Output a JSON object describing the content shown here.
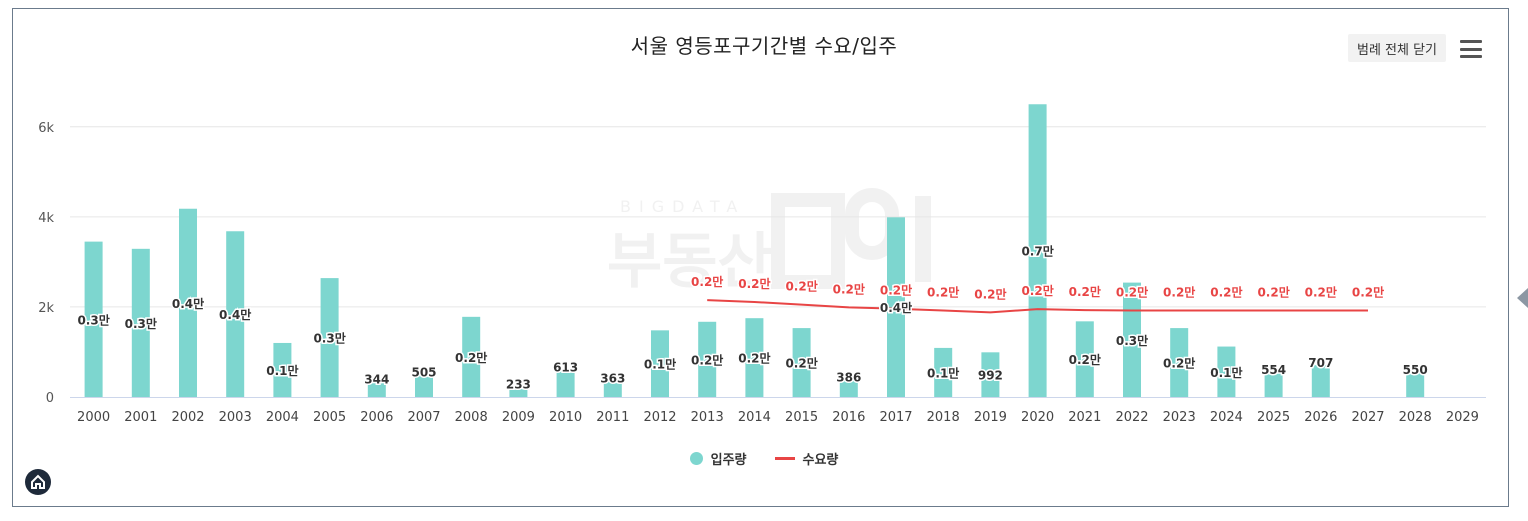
{
  "title": "서울 영등포구기간별 수요/입주",
  "legend_toggle_label": "범례 전체 닫기",
  "watermark": {
    "small": "BIGDATA",
    "big": "부동산"
  },
  "colors": {
    "bar": "#7dd6cf",
    "line": "#e84545",
    "grid": "#e6e6e6",
    "axis": "#ccd6eb",
    "bar_label": "#333333",
    "line_label": "#e84545"
  },
  "chart_data": {
    "type": "bar+line",
    "title": "서울 영등포구기간별 수요/입주",
    "categories": [
      "2000",
      "2001",
      "2002",
      "2003",
      "2004",
      "2005",
      "2006",
      "2007",
      "2008",
      "2009",
      "2010",
      "2011",
      "2012",
      "2013",
      "2014",
      "2015",
      "2016",
      "2017",
      "2018",
      "2019",
      "2020",
      "2021",
      "2022",
      "2023",
      "2024",
      "2025",
      "2026",
      "2027",
      "2028",
      "2029"
    ],
    "ylim": [
      0,
      6500
    ],
    "yticks": [
      0,
      2000,
      4000,
      6000
    ],
    "ytick_labels": [
      "0",
      "2k",
      "4k",
      "6k"
    ],
    "series": [
      {
        "name": "입주량",
        "type": "bar",
        "values": [
          3450,
          3290,
          4180,
          3680,
          1200,
          2640,
          344,
          505,
          1780,
          233,
          613,
          363,
          1480,
          1670,
          1750,
          1530,
          386,
          3990,
          1090,
          992,
          6500,
          1680,
          2540,
          1530,
          1120,
          554,
          707,
          null,
          550,
          null
        ],
        "labels": [
          "0.3만",
          "0.3만",
          "0.4만",
          "0.4만",
          "0.1만",
          "0.3만",
          "344",
          "505",
          "0.2만",
          "233",
          "613",
          "363",
          "0.1만",
          "0.2만",
          "0.2만",
          "0.2만",
          "386",
          "0.4만",
          "0.1만",
          "992",
          "0.7만",
          "0.2만",
          "0.3만",
          "0.2만",
          "0.1만",
          "554",
          "707",
          "",
          "550",
          ""
        ]
      },
      {
        "name": "수요량",
        "type": "line",
        "values": [
          null,
          null,
          null,
          null,
          null,
          null,
          null,
          null,
          null,
          null,
          null,
          null,
          null,
          2150,
          2110,
          2050,
          1990,
          1960,
          1920,
          1880,
          1950,
          1930,
          1920,
          1920,
          1920,
          1920,
          1920,
          1920,
          null,
          null
        ],
        "labels": [
          "",
          "",
          "",
          "",
          "",
          "",
          "",
          "",
          "",
          "",
          "",
          "",
          "",
          "0.2만",
          "0.2만",
          "0.2만",
          "0.2만",
          "0.2만",
          "0.2만",
          "0.2만",
          "0.2만",
          "0.2만",
          "0.2만",
          "0.2만",
          "0.2만",
          "0.2만",
          "0.2만",
          "0.2만",
          "",
          ""
        ]
      }
    ],
    "legend": [
      "입주량",
      "수요량"
    ],
    "legend_position": "bottom-center"
  }
}
